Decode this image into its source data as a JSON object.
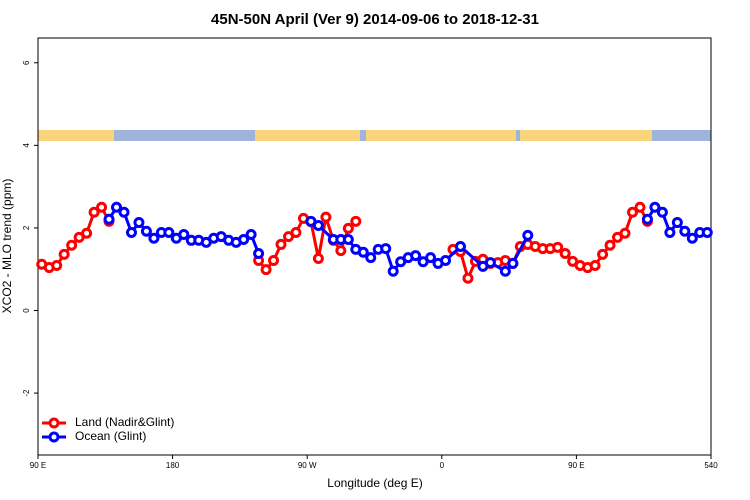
{
  "chart_data": {
    "type": "line",
    "title": "45N-50N April (Ver 9)   2014-09-06 to 2018-12-31",
    "x_label": "Longitude (deg E)",
    "y_label": "XCO2 - MLO trend (ppm)",
    "xlim": [
      90,
      540
    ],
    "ylim": [
      -3.5,
      6.6
    ],
    "xticks": [
      {
        "value": 90,
        "label": "90 E"
      },
      180,
      {
        "value": 270,
        "label": "90 W"
      },
      {
        "value": 360,
        "label": "0"
      },
      {
        "value": 450,
        "label": "90 E"
      },
      540
    ],
    "yticks": [
      -2,
      0,
      2,
      4,
      6
    ],
    "grid": false,
    "legend": "bottom-left",
    "series": [
      {
        "name": "Land (Nadir&Glint)",
        "color": "#ff0000",
        "x": [
          92.5,
          97.5,
          102.5,
          107.5,
          112.5,
          117.5,
          122.5,
          127.5,
          132.5,
          137.5,
          187.5,
          237.5,
          242.5,
          247.5,
          252.5,
          257.5,
          262.5,
          267.5,
          272.5,
          277.5,
          282.5,
          287.5,
          292.5,
          297.5,
          302.5,
          335,
          367.5,
          372.5,
          377.5,
          382.5,
          387.5,
          392.5,
          397.5,
          402.5,
          407.5,
          412.5,
          417.5,
          422.5,
          427.5,
          432.5,
          437.5,
          442.5,
          447.5,
          452.5,
          457.5,
          462.5,
          467.5,
          472.5,
          477.5,
          482.5,
          487.5,
          492.5,
          497.5
        ],
        "values": [
          1.12,
          1.04,
          1.09,
          1.36,
          1.58,
          1.77,
          1.87,
          2.38,
          2.5,
          2.16,
          null,
          1.21,
          0.99,
          1.21,
          1.6,
          1.79,
          1.89,
          2.23,
          2.15,
          1.26,
          2.26,
          1.7,
          1.45,
          1.99,
          2.16,
          null,
          1.48,
          1.43,
          0.78,
          1.19,
          1.24,
          1.14,
          1.16,
          1.21,
          1.14,
          1.55,
          1.6,
          1.55,
          1.5,
          1.5,
          1.53,
          1.38,
          1.19,
          1.09,
          1.04,
          1.09,
          1.36,
          1.58,
          1.77,
          1.87,
          2.38,
          2.5,
          2.16
        ]
      },
      {
        "name": "Ocean (Glint)",
        "color": "#0000ff",
        "x": [
          137.5,
          142.5,
          147.5,
          152.5,
          157.5,
          162.5,
          167.5,
          172.5,
          177.5,
          182.5,
          187.5,
          192.5,
          197.5,
          202.5,
          207.5,
          212.5,
          217.5,
          222.5,
          227.5,
          232.5,
          237.5,
          255,
          272.5,
          277.5,
          287.5,
          292.5,
          297.5,
          302.5,
          307.5,
          312.5,
          317.5,
          322.5,
          327.5,
          332.5,
          337.5,
          342.5,
          347.5,
          352.5,
          357.5,
          362.5,
          372.5,
          387.5,
          392.5,
          402.5,
          407.5,
          417.5,
          460,
          497.5,
          502.5,
          507.5,
          512.5,
          517.5,
          522.5,
          527.5,
          532.5,
          537.5
        ],
        "values": [
          2.21,
          2.5,
          2.38,
          1.89,
          2.13,
          1.92,
          1.75,
          1.89,
          1.89,
          1.75,
          1.84,
          1.7,
          1.7,
          1.65,
          1.75,
          1.79,
          1.7,
          1.65,
          1.72,
          1.84,
          1.38,
          null,
          2.16,
          2.06,
          1.72,
          1.72,
          1.72,
          1.48,
          1.41,
          1.28,
          1.48,
          1.5,
          0.95,
          1.18,
          1.28,
          1.33,
          1.18,
          1.28,
          1.14,
          1.21,
          1.55,
          1.07,
          1.16,
          0.95,
          1.14,
          1.82,
          null,
          2.21,
          2.5,
          2.38,
          1.89,
          2.13,
          1.92,
          1.75,
          1.89,
          1.89
        ]
      }
    ]
  }
}
